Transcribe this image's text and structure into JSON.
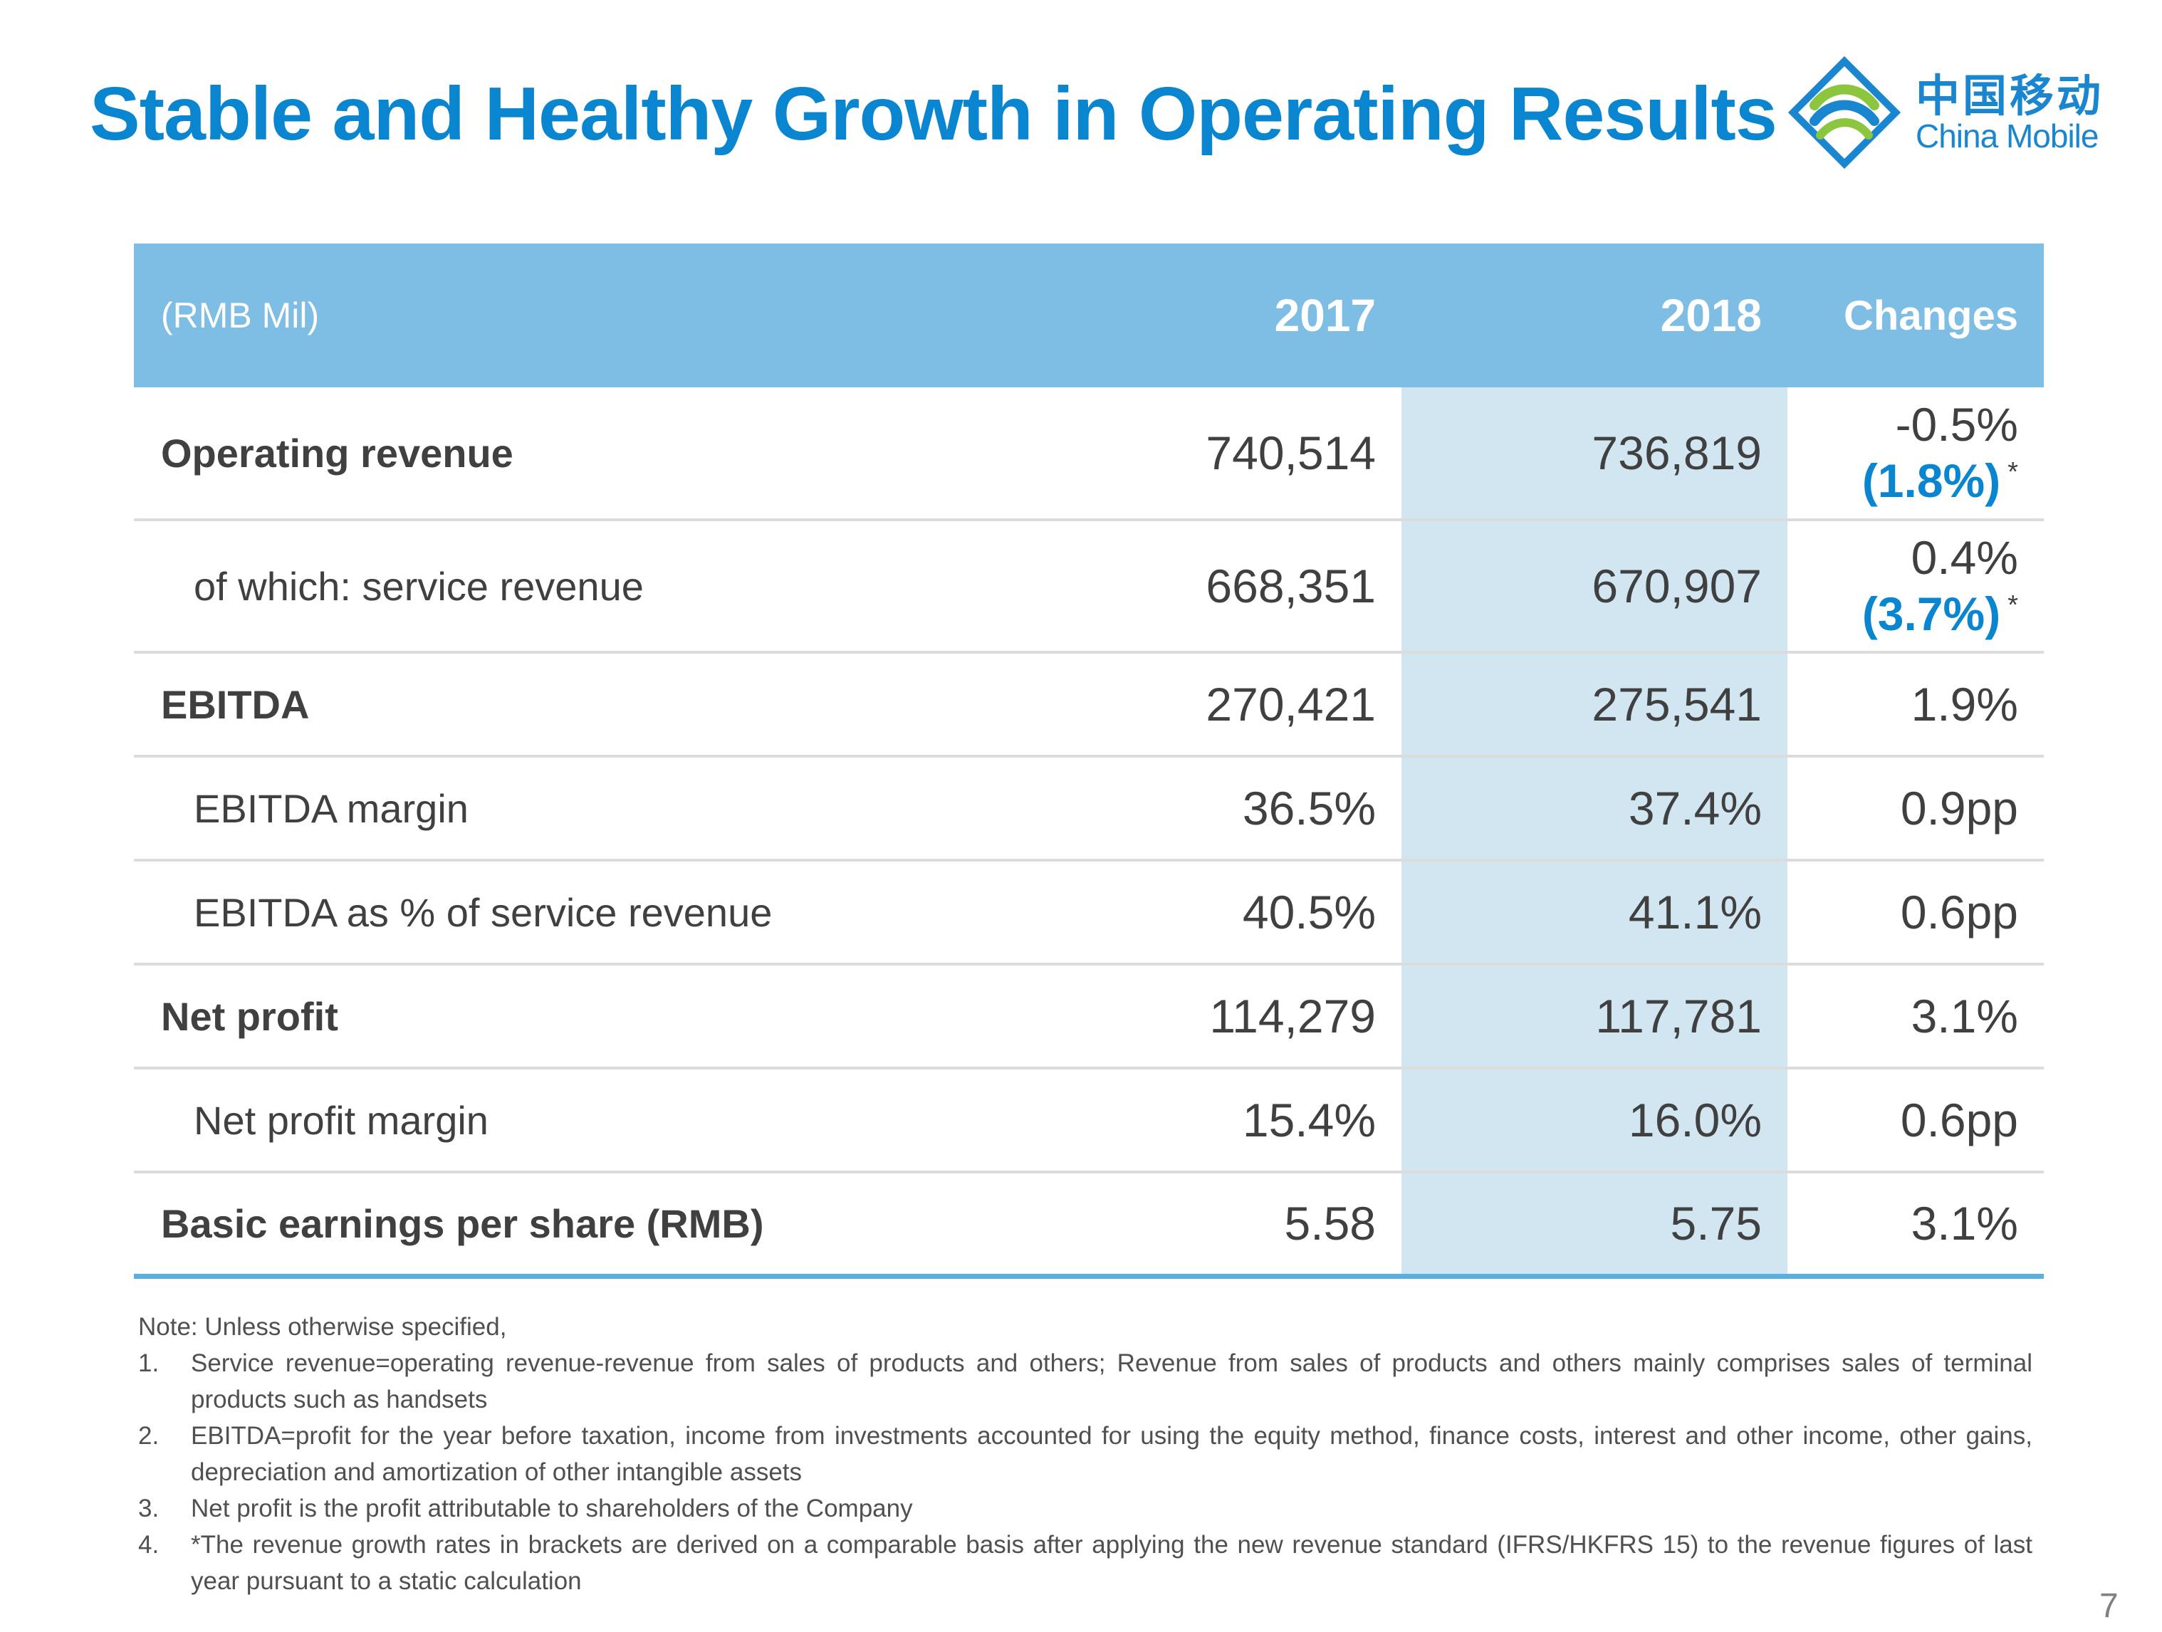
{
  "title": "Stable and Healthy Growth in Operating Results",
  "logo": {
    "cn": "中国移动",
    "en": "China Mobile"
  },
  "table": {
    "unit": "(RMB Mil)",
    "headers": [
      "2017",
      "2018",
      "Changes"
    ],
    "rows": [
      {
        "label": "Operating revenue",
        "v2017": "740,514",
        "v2018": "736,819",
        "change": "-0.5%",
        "change_bracket": "(1.8%)",
        "star": "*"
      },
      {
        "label": "of which: service revenue",
        "v2017": "668,351",
        "v2018": "670,907",
        "change": "0.4%",
        "change_bracket": "(3.7%)",
        "star": "*"
      },
      {
        "label": "EBITDA",
        "v2017": "270,421",
        "v2018": "275,541",
        "change": "1.9%"
      },
      {
        "label": "EBITDA margin",
        "v2017": "36.5%",
        "v2018": "37.4%",
        "change": "0.9pp"
      },
      {
        "label": "EBITDA as % of service revenue",
        "v2017": "40.5%",
        "v2018": "41.1%",
        "change": "0.6pp"
      },
      {
        "label": "Net profit",
        "v2017": "114,279",
        "v2018": "117,781",
        "change": "3.1%"
      },
      {
        "label": "Net profit margin",
        "v2017": "15.4%",
        "v2018": "16.0%",
        "change": "0.6pp"
      },
      {
        "label": "Basic earnings per share (RMB)",
        "v2017": "5.58",
        "v2018": "5.75",
        "change": "3.1%"
      }
    ]
  },
  "notes": {
    "heading": "Note: Unless otherwise specified,",
    "items": [
      {
        "num": "1.",
        "text": "Service revenue=operating revenue-revenue from sales of products and others; Revenue from sales of products and others mainly comprises sales of terminal products such as handsets"
      },
      {
        "num": "2.",
        "text": "EBITDA=profit for the year before taxation, income from investments accounted for using the equity method, finance costs, interest and other income, other gains, depreciation and amortization of other intangible assets"
      },
      {
        "num": "3.",
        "text": "Net profit is the profit attributable to shareholders of the Company"
      },
      {
        "num": "4.",
        "text": "*The revenue growth rates in brackets are derived on a comparable basis after applying the new revenue standard (IFRS/HKFRS 15) to the revenue figures of last year pursuant to a static calculation"
      }
    ]
  },
  "page_number": "7",
  "colors": {
    "title": "#0a85cf",
    "header_bg": "#7ebde4",
    "highlight_col": "#d2e6f2",
    "bracket": "#0a85cf",
    "bottom_rule": "#5aaee0"
  }
}
